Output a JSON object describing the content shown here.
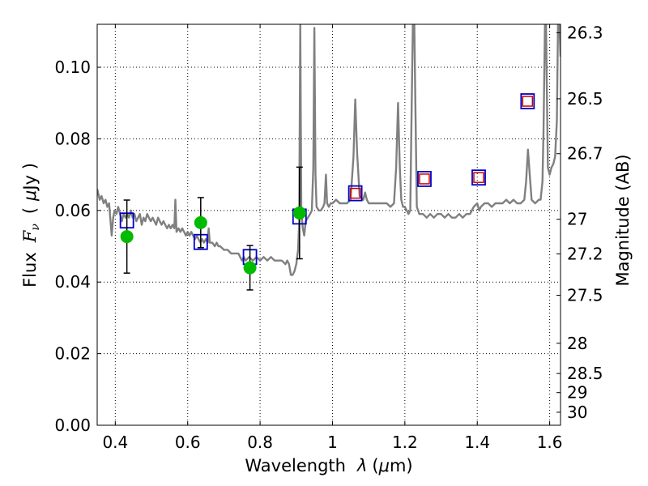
{
  "chart_data": {
    "type": "scatter",
    "xlabel_text": "Wavelength",
    "xlabel_var": "λ",
    "xlabel_unit_pre": "(",
    "xlabel_unit_mu": "μ",
    "xlabel_unit_post": "m)",
    "ylabel_text": "Flux",
    "ylabel_var": "F",
    "ylabel_sub": "ν",
    "ylabel_unit_pre": "(",
    "ylabel_unit_mu": "μ",
    "ylabel_unit_post": "Jy )",
    "y2label": "Magnitude (AB)",
    "xlim": [
      0.35,
      1.63
    ],
    "ylim": [
      0.0,
      0.112
    ],
    "grid": true,
    "x_ticks": [
      {
        "v": 0.4,
        "label": "0.4"
      },
      {
        "v": 0.6,
        "label": "0.6"
      },
      {
        "v": 0.8,
        "label": "0.8"
      },
      {
        "v": 1.0,
        "label": "1"
      },
      {
        "v": 1.2,
        "label": "1.2"
      },
      {
        "v": 1.4,
        "label": "1.4"
      },
      {
        "v": 1.6,
        "label": "1.6"
      }
    ],
    "y_ticks": [
      {
        "v": 0.0,
        "label": "0.00"
      },
      {
        "v": 0.02,
        "label": "0.02"
      },
      {
        "v": 0.04,
        "label": "0.04"
      },
      {
        "v": 0.06,
        "label": "0.06"
      },
      {
        "v": 0.08,
        "label": "0.08"
      },
      {
        "v": 0.1,
        "label": "0.10"
      }
    ],
    "mag_ticks": [
      {
        "label": "26.3",
        "mag": 26.3
      },
      {
        "label": "26.5",
        "mag": 26.5
      },
      {
        "label": "26.7",
        "mag": 26.7
      },
      {
        "label": "27",
        "mag": 27.0
      },
      {
        "label": "27.2",
        "mag": 27.2
      },
      {
        "label": "27.5",
        "mag": 27.5
      },
      {
        "label": "28",
        "mag": 28.0
      },
      {
        "label": "28.5",
        "mag": 28.5
      },
      {
        "label": "29",
        "mag": 29.0
      },
      {
        "label": "30",
        "mag": 30.0
      }
    ],
    "series": [
      {
        "kind": "spectrum",
        "color": "#808080",
        "points": [
          [
            0.35,
            0.066
          ],
          [
            0.357,
            0.063
          ],
          [
            0.362,
            0.064
          ],
          [
            0.368,
            0.062
          ],
          [
            0.373,
            0.063
          ],
          [
            0.378,
            0.061
          ],
          [
            0.383,
            0.062
          ],
          [
            0.386,
            0.058
          ],
          [
            0.39,
            0.053
          ],
          [
            0.394,
            0.058
          ],
          [
            0.398,
            0.06
          ],
          [
            0.403,
            0.059
          ],
          [
            0.408,
            0.061
          ],
          [
            0.413,
            0.059
          ],
          [
            0.418,
            0.057
          ],
          [
            0.423,
            0.059
          ],
          [
            0.428,
            0.058
          ],
          [
            0.433,
            0.059
          ],
          [
            0.438,
            0.058
          ],
          [
            0.443,
            0.06
          ],
          [
            0.448,
            0.058
          ],
          [
            0.453,
            0.059
          ],
          [
            0.458,
            0.057
          ],
          [
            0.463,
            0.058
          ],
          [
            0.468,
            0.059
          ],
          [
            0.473,
            0.056
          ],
          [
            0.478,
            0.058
          ],
          [
            0.483,
            0.057
          ],
          [
            0.488,
            0.059
          ],
          [
            0.493,
            0.058
          ],
          [
            0.498,
            0.057
          ],
          [
            0.503,
            0.058
          ],
          [
            0.508,
            0.057
          ],
          [
            0.513,
            0.056
          ],
          [
            0.518,
            0.058
          ],
          [
            0.523,
            0.057
          ],
          [
            0.528,
            0.056
          ],
          [
            0.533,
            0.057
          ],
          [
            0.538,
            0.056
          ],
          [
            0.543,
            0.055
          ],
          [
            0.548,
            0.056
          ],
          [
            0.553,
            0.055
          ],
          [
            0.558,
            0.056
          ],
          [
            0.563,
            0.055
          ],
          [
            0.566,
            0.063
          ],
          [
            0.569,
            0.054
          ],
          [
            0.575,
            0.055
          ],
          [
            0.58,
            0.054
          ],
          [
            0.585,
            0.055
          ],
          [
            0.59,
            0.054
          ],
          [
            0.595,
            0.053
          ],
          [
            0.6,
            0.054
          ],
          [
            0.605,
            0.053
          ],
          [
            0.61,
            0.054
          ],
          [
            0.615,
            0.053
          ],
          [
            0.62,
            0.052
          ],
          [
            0.625,
            0.053
          ],
          [
            0.63,
            0.052
          ],
          [
            0.635,
            0.051
          ],
          [
            0.64,
            0.052
          ],
          [
            0.645,
            0.051
          ],
          [
            0.65,
            0.052
          ],
          [
            0.655,
            0.051
          ],
          [
            0.658,
            0.055
          ],
          [
            0.661,
            0.051
          ],
          [
            0.668,
            0.051
          ],
          [
            0.675,
            0.05
          ],
          [
            0.68,
            0.051
          ],
          [
            0.685,
            0.05
          ],
          [
            0.69,
            0.05
          ],
          [
            0.7,
            0.049
          ],
          [
            0.71,
            0.049
          ],
          [
            0.72,
            0.048
          ],
          [
            0.73,
            0.048
          ],
          [
            0.74,
            0.048
          ],
          [
            0.745,
            0.047
          ],
          [
            0.75,
            0.046
          ],
          [
            0.755,
            0.047
          ],
          [
            0.76,
            0.046
          ],
          [
            0.77,
            0.047
          ],
          [
            0.78,
            0.046
          ],
          [
            0.79,
            0.047
          ],
          [
            0.8,
            0.046
          ],
          [
            0.81,
            0.047
          ],
          [
            0.82,
            0.046
          ],
          [
            0.83,
            0.047
          ],
          [
            0.84,
            0.046
          ],
          [
            0.85,
            0.046
          ],
          [
            0.86,
            0.046
          ],
          [
            0.87,
            0.045
          ],
          [
            0.875,
            0.046
          ],
          [
            0.88,
            0.045
          ],
          [
            0.885,
            0.042
          ],
          [
            0.89,
            0.042
          ],
          [
            0.895,
            0.043
          ],
          [
            0.9,
            0.045
          ],
          [
            0.905,
            0.049
          ],
          [
            0.908,
            0.057
          ],
          [
            0.911,
            0.112
          ],
          [
            0.914,
            0.06
          ],
          [
            0.918,
            0.055
          ],
          [
            0.922,
            0.053
          ],
          [
            0.926,
            0.057
          ],
          [
            0.932,
            0.058
          ],
          [
            0.938,
            0.059
          ],
          [
            0.943,
            0.06
          ],
          [
            0.947,
            0.072
          ],
          [
            0.95,
            0.111
          ],
          [
            0.953,
            0.07
          ],
          [
            0.956,
            0.061
          ],
          [
            0.962,
            0.06
          ],
          [
            0.968,
            0.06
          ],
          [
            0.974,
            0.061
          ],
          [
            0.978,
            0.062
          ],
          [
            0.982,
            0.07
          ],
          [
            0.985,
            0.062
          ],
          [
            0.99,
            0.061
          ],
          [
            0.995,
            0.062
          ],
          [
            1.0,
            0.062
          ],
          [
            1.01,
            0.063
          ],
          [
            1.02,
            0.062
          ],
          [
            1.03,
            0.062
          ],
          [
            1.04,
            0.062
          ],
          [
            1.05,
            0.063
          ],
          [
            1.058,
            0.075
          ],
          [
            1.063,
            0.091
          ],
          [
            1.068,
            0.076
          ],
          [
            1.075,
            0.064
          ],
          [
            1.085,
            0.063
          ],
          [
            1.09,
            0.065
          ],
          [
            1.095,
            0.063
          ],
          [
            1.1,
            0.062
          ],
          [
            1.11,
            0.062
          ],
          [
            1.12,
            0.062
          ],
          [
            1.13,
            0.062
          ],
          [
            1.14,
            0.062
          ],
          [
            1.15,
            0.062
          ],
          [
            1.16,
            0.061
          ],
          [
            1.17,
            0.062
          ],
          [
            1.176,
            0.072
          ],
          [
            1.181,
            0.09
          ],
          [
            1.186,
            0.072
          ],
          [
            1.19,
            0.063
          ],
          [
            1.195,
            0.061
          ],
          [
            1.2,
            0.061
          ],
          [
            1.205,
            0.06
          ],
          [
            1.21,
            0.059
          ],
          [
            1.215,
            0.06
          ],
          [
            1.219,
            0.09
          ],
          [
            1.222,
            0.112
          ],
          [
            1.226,
            0.112
          ],
          [
            1.229,
            0.09
          ],
          [
            1.233,
            0.061
          ],
          [
            1.24,
            0.059
          ],
          [
            1.25,
            0.059
          ],
          [
            1.26,
            0.058
          ],
          [
            1.27,
            0.059
          ],
          [
            1.28,
            0.058
          ],
          [
            1.29,
            0.059
          ],
          [
            1.3,
            0.059
          ],
          [
            1.31,
            0.058
          ],
          [
            1.32,
            0.059
          ],
          [
            1.33,
            0.058
          ],
          [
            1.34,
            0.058
          ],
          [
            1.35,
            0.059
          ],
          [
            1.36,
            0.058
          ],
          [
            1.37,
            0.059
          ],
          [
            1.38,
            0.059
          ],
          [
            1.39,
            0.061
          ],
          [
            1.4,
            0.062
          ],
          [
            1.405,
            0.06
          ],
          [
            1.41,
            0.061
          ],
          [
            1.42,
            0.062
          ],
          [
            1.43,
            0.062
          ],
          [
            1.44,
            0.061
          ],
          [
            1.45,
            0.062
          ],
          [
            1.46,
            0.062
          ],
          [
            1.47,
            0.062
          ],
          [
            1.48,
            0.063
          ],
          [
            1.49,
            0.062
          ],
          [
            1.5,
            0.063
          ],
          [
            1.51,
            0.062
          ],
          [
            1.52,
            0.062
          ],
          [
            1.53,
            0.063
          ],
          [
            1.535,
            0.068
          ],
          [
            1.54,
            0.077
          ],
          [
            1.545,
            0.07
          ],
          [
            1.55,
            0.063
          ],
          [
            1.56,
            0.062
          ],
          [
            1.57,
            0.063
          ],
          [
            1.575,
            0.063
          ],
          [
            1.58,
            0.068
          ],
          [
            1.583,
            0.082
          ],
          [
            1.587,
            0.112
          ],
          [
            1.59,
            0.112
          ],
          [
            1.595,
            0.072
          ],
          [
            1.6,
            0.07
          ],
          [
            1.605,
            0.072
          ],
          [
            1.61,
            0.073
          ],
          [
            1.615,
            0.075
          ],
          [
            1.62,
            0.085
          ],
          [
            1.623,
            0.112
          ],
          [
            1.627,
            0.112
          ],
          [
            1.63,
            0.103
          ]
        ]
      },
      {
        "kind": "model_photometry",
        "color": "#0000cc",
        "x": [
          0.432,
          0.636,
          0.772,
          0.909,
          1.063,
          1.254,
          1.404,
          1.539
        ],
        "y": [
          0.0572,
          0.0512,
          0.047,
          0.0583,
          0.0648,
          0.0688,
          0.0692,
          0.0905
        ]
      },
      {
        "kind": "observed_photometry_upper",
        "color": "#cc0000",
        "x": [
          1.063,
          1.254,
          1.404,
          1.539
        ],
        "y": [
          0.0648,
          0.0688,
          0.0692,
          0.0905
        ]
      },
      {
        "kind": "observed_photometry",
        "color": "#00bb00",
        "x": [
          0.432,
          0.636,
          0.772,
          0.909
        ],
        "y": [
          0.0527,
          0.0566,
          0.044,
          0.0593
        ],
        "yerr": [
          0.0102,
          0.007,
          0.0062,
          0.0128
        ]
      }
    ]
  }
}
